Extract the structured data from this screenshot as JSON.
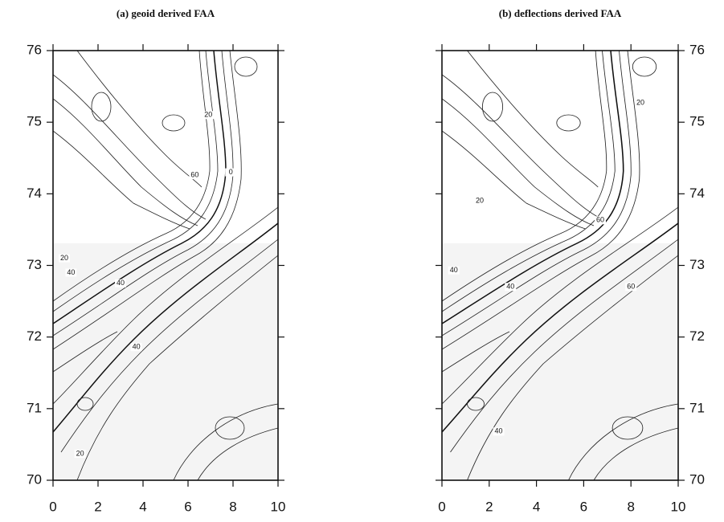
{
  "chart_data": [
    {
      "type": "contour",
      "title": "(a)  geoid derived FAA",
      "xlim": [
        0,
        10
      ],
      "xticks": [
        0,
        2,
        4,
        6,
        8,
        10
      ],
      "ylim": [
        70,
        76
      ],
      "yticks": [
        70,
        71,
        72,
        73,
        74,
        75,
        76
      ],
      "annotations": [
        {
          "label": "20",
          "x": 0.5,
          "y": 73.1
        },
        {
          "label": "40",
          "x": 0.8,
          "y": 72.9
        },
        {
          "label": "40",
          "x": 3.0,
          "y": 72.75
        },
        {
          "label": "40",
          "x": 3.7,
          "y": 71.86
        },
        {
          "label": "60",
          "x": 6.3,
          "y": 74.26
        },
        {
          "label": "0",
          "x": 7.9,
          "y": 74.3
        },
        {
          "label": "20",
          "x": 6.9,
          "y": 75.1
        },
        {
          "label": "20",
          "x": 1.2,
          "y": 70.37
        }
      ]
    },
    {
      "type": "contour",
      "title": "(b)  deflections derived FAA",
      "xlim": [
        0,
        10
      ],
      "xticks": [
        0,
        2,
        4,
        6,
        8,
        10
      ],
      "ylim": [
        70,
        76
      ],
      "yticks": [
        70,
        71,
        72,
        73,
        74,
        75,
        76
      ],
      "annotations": [
        {
          "label": "20",
          "x": 1.6,
          "y": 73.9
        },
        {
          "label": "40",
          "x": 0.5,
          "y": 72.93
        },
        {
          "label": "40",
          "x": 2.9,
          "y": 72.7
        },
        {
          "label": "60",
          "x": 6.7,
          "y": 73.63
        },
        {
          "label": "60",
          "x": 8.0,
          "y": 72.7
        },
        {
          "label": "20",
          "x": 8.4,
          "y": 75.27
        },
        {
          "label": "40",
          "x": 2.4,
          "y": 70.68
        }
      ]
    }
  ]
}
